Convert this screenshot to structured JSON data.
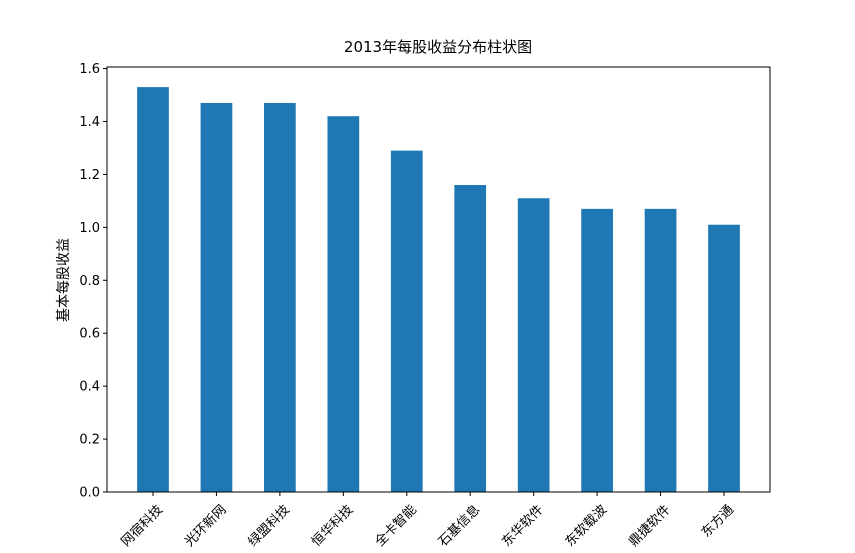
{
  "chart_data": {
    "type": "bar",
    "title": "2013年每股收益分布柱状图",
    "ylabel": "基本每股收益",
    "categories": [
      "网宿科技",
      "光环新网",
      "绿盟科技",
      "恒华科技",
      "全卡智能",
      "石基信息",
      "东华软件",
      "东软载波",
      "鼎捷软件",
      "东方通"
    ],
    "values": [
      1.53,
      1.47,
      1.47,
      1.42,
      1.29,
      1.16,
      1.11,
      1.07,
      1.07,
      1.01
    ],
    "color": "#1f77b4",
    "ylim": [
      0,
      1.606
    ],
    "yticks": [
      {
        "value": 0,
        "label": "0.0"
      },
      0.2,
      0.4,
      0.6,
      0.8,
      {
        "value": 1,
        "label": "1.0"
      },
      1.2,
      1.4,
      1.6
    ]
  }
}
